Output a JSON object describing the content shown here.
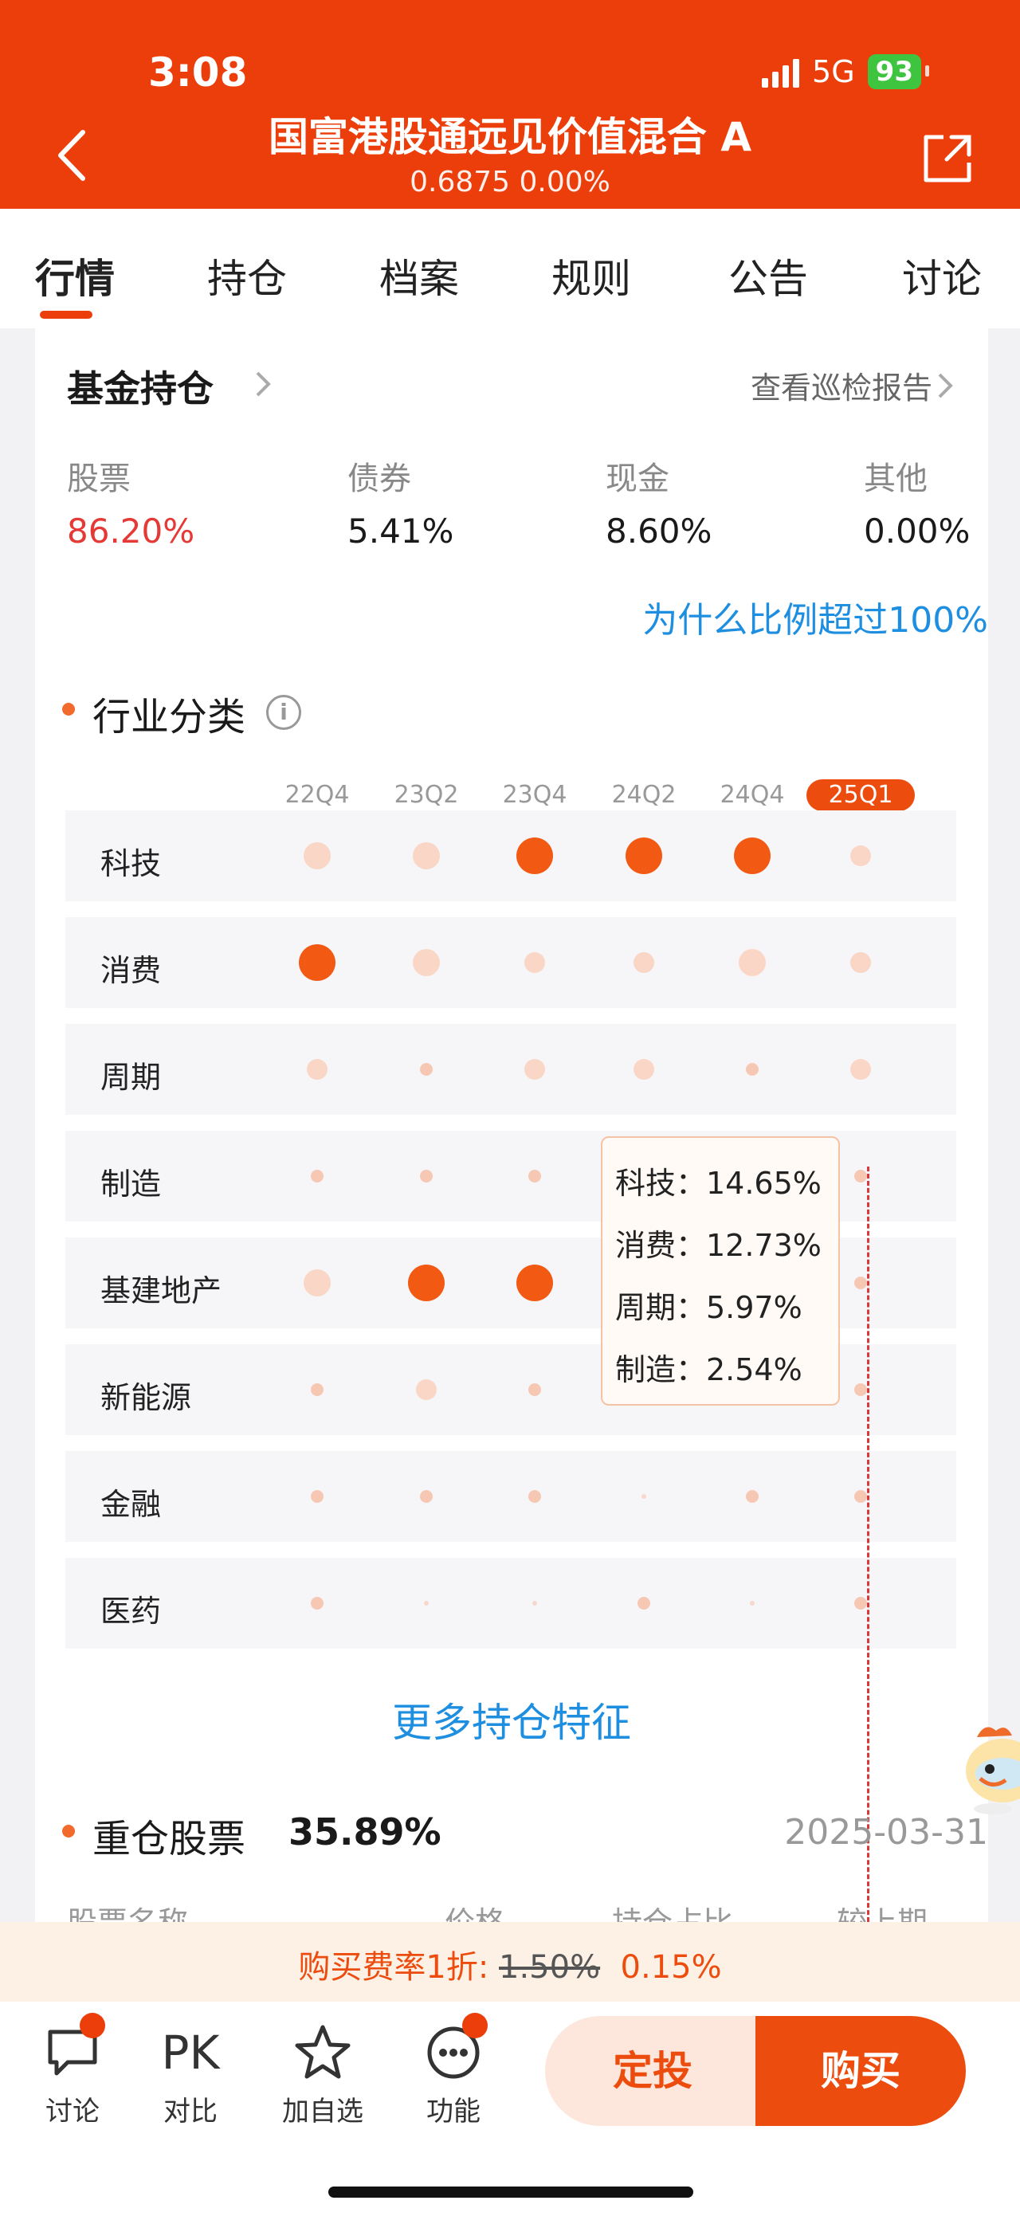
{
  "status": {
    "time": "3:08",
    "network": "5G",
    "battery": "93"
  },
  "header": {
    "title": "国富港股通远见价值混合 A",
    "subtitle": "0.6875 0.00%"
  },
  "tabs": [
    "行情",
    "持仓",
    "档案",
    "规则",
    "公告",
    "讨论"
  ],
  "holdings": {
    "title": "基金持仓",
    "report_link": "查看巡检报告",
    "allocation": [
      {
        "label": "股票",
        "value": "86.20%"
      },
      {
        "label": "债券",
        "value": "5.41%"
      },
      {
        "label": "现金",
        "value": "8.60%"
      },
      {
        "label": "其他",
        "value": "0.00%"
      }
    ],
    "why_link": "为什么比例超过100%"
  },
  "industry": {
    "title": "行业分类",
    "quarters": [
      "22Q4",
      "23Q2",
      "23Q4",
      "24Q2",
      "24Q4",
      "25Q1"
    ],
    "active_quarter": "25Q1",
    "sectors": [
      "科技",
      "消费",
      "周期",
      "制造",
      "基建地产",
      "新能源",
      "金融",
      "医药"
    ],
    "levels": [
      [
        2,
        2,
        3,
        3,
        3,
        1
      ],
      [
        3,
        2,
        1,
        1,
        2,
        1
      ],
      [
        1,
        0,
        1,
        1,
        0,
        1
      ],
      [
        0,
        0,
        0,
        0,
        0,
        0
      ],
      [
        2,
        3,
        3,
        0,
        0,
        0
      ],
      [
        0,
        1,
        0,
        0,
        0,
        0
      ],
      [
        0,
        0,
        0,
        -1,
        0,
        0
      ],
      [
        0,
        -1,
        -1,
        0,
        -1,
        0
      ]
    ],
    "tooltip": [
      "科技：14.65%",
      "消费：12.73%",
      "周期：5.97%",
      "制造：2.54%"
    ]
  },
  "more_link": "更多持仓特征",
  "heavy": {
    "title": "重仓股票",
    "value": "35.89%",
    "date": "2025-03-31"
  },
  "table_headers": [
    "股票名称",
    "价格",
    "持仓占比",
    "较上期"
  ],
  "promo": {
    "prefix": "购买费率1折: ",
    "old_rate": "1.50%",
    "new_rate": "0.15%"
  },
  "bottom_bar": {
    "discuss": "讨论",
    "compare": "对比",
    "compare_icon": "PK",
    "watchlist": "加自选",
    "functions": "功能",
    "sip": "定投",
    "buy": "购买"
  },
  "colors": {
    "brand": "#ec3e0b",
    "link": "#1e8fe0",
    "stock_red": "#e53935"
  }
}
